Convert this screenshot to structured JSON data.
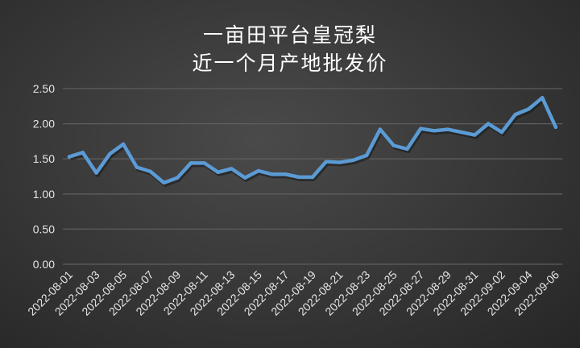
{
  "chart_data": {
    "type": "line",
    "title": [
      "一亩田平台皇冠梨",
      "近一个月产地批发价"
    ],
    "xlabel": "",
    "ylabel": "",
    "ylim": [
      0,
      2.5
    ],
    "yticks": [
      "0.00",
      "0.50",
      "1.00",
      "1.50",
      "2.00",
      "2.50"
    ],
    "grid": true,
    "line_color": "#5b9bd5",
    "x": [
      "2022-08-01",
      "2022-08-02",
      "2022-08-03",
      "2022-08-04",
      "2022-08-05",
      "2022-08-06",
      "2022-08-07",
      "2022-08-08",
      "2022-08-09",
      "2022-08-10",
      "2022-08-11",
      "2022-08-12",
      "2022-08-13",
      "2022-08-14",
      "2022-08-15",
      "2022-08-16",
      "2022-08-17",
      "2022-08-18",
      "2022-08-19",
      "2022-08-20",
      "2022-08-21",
      "2022-08-22",
      "2022-08-23",
      "2022-08-24",
      "2022-08-25",
      "2022-08-26",
      "2022-08-27",
      "2022-08-28",
      "2022-08-29",
      "2022-08-30",
      "2022-08-31",
      "2022-09-01",
      "2022-09-02",
      "2022-09-03",
      "2022-09-04",
      "2022-09-05",
      "2022-09-06"
    ],
    "xtick_labels": [
      "2022-08-01",
      "2022-08-03",
      "2022-08-05",
      "2022-08-07",
      "2022-08-09",
      "2022-08-11",
      "2022-08-13",
      "2022-08-15",
      "2022-08-17",
      "2022-08-19",
      "2022-08-21",
      "2022-08-23",
      "2022-08-25",
      "2022-08-27",
      "2022-08-29",
      "2022-08-31",
      "2022-09-02",
      "2022-09-04",
      "2022-09-06"
    ],
    "values": [
      1.53,
      1.59,
      1.3,
      1.57,
      1.71,
      1.38,
      1.32,
      1.16,
      1.23,
      1.44,
      1.44,
      1.31,
      1.36,
      1.23,
      1.33,
      1.28,
      1.28,
      1.24,
      1.24,
      1.46,
      1.45,
      1.48,
      1.55,
      1.92,
      1.69,
      1.64,
      1.93,
      1.9,
      1.92,
      1.88,
      1.84,
      2.0,
      1.88,
      2.13,
      2.21,
      2.37,
      1.95
    ]
  }
}
